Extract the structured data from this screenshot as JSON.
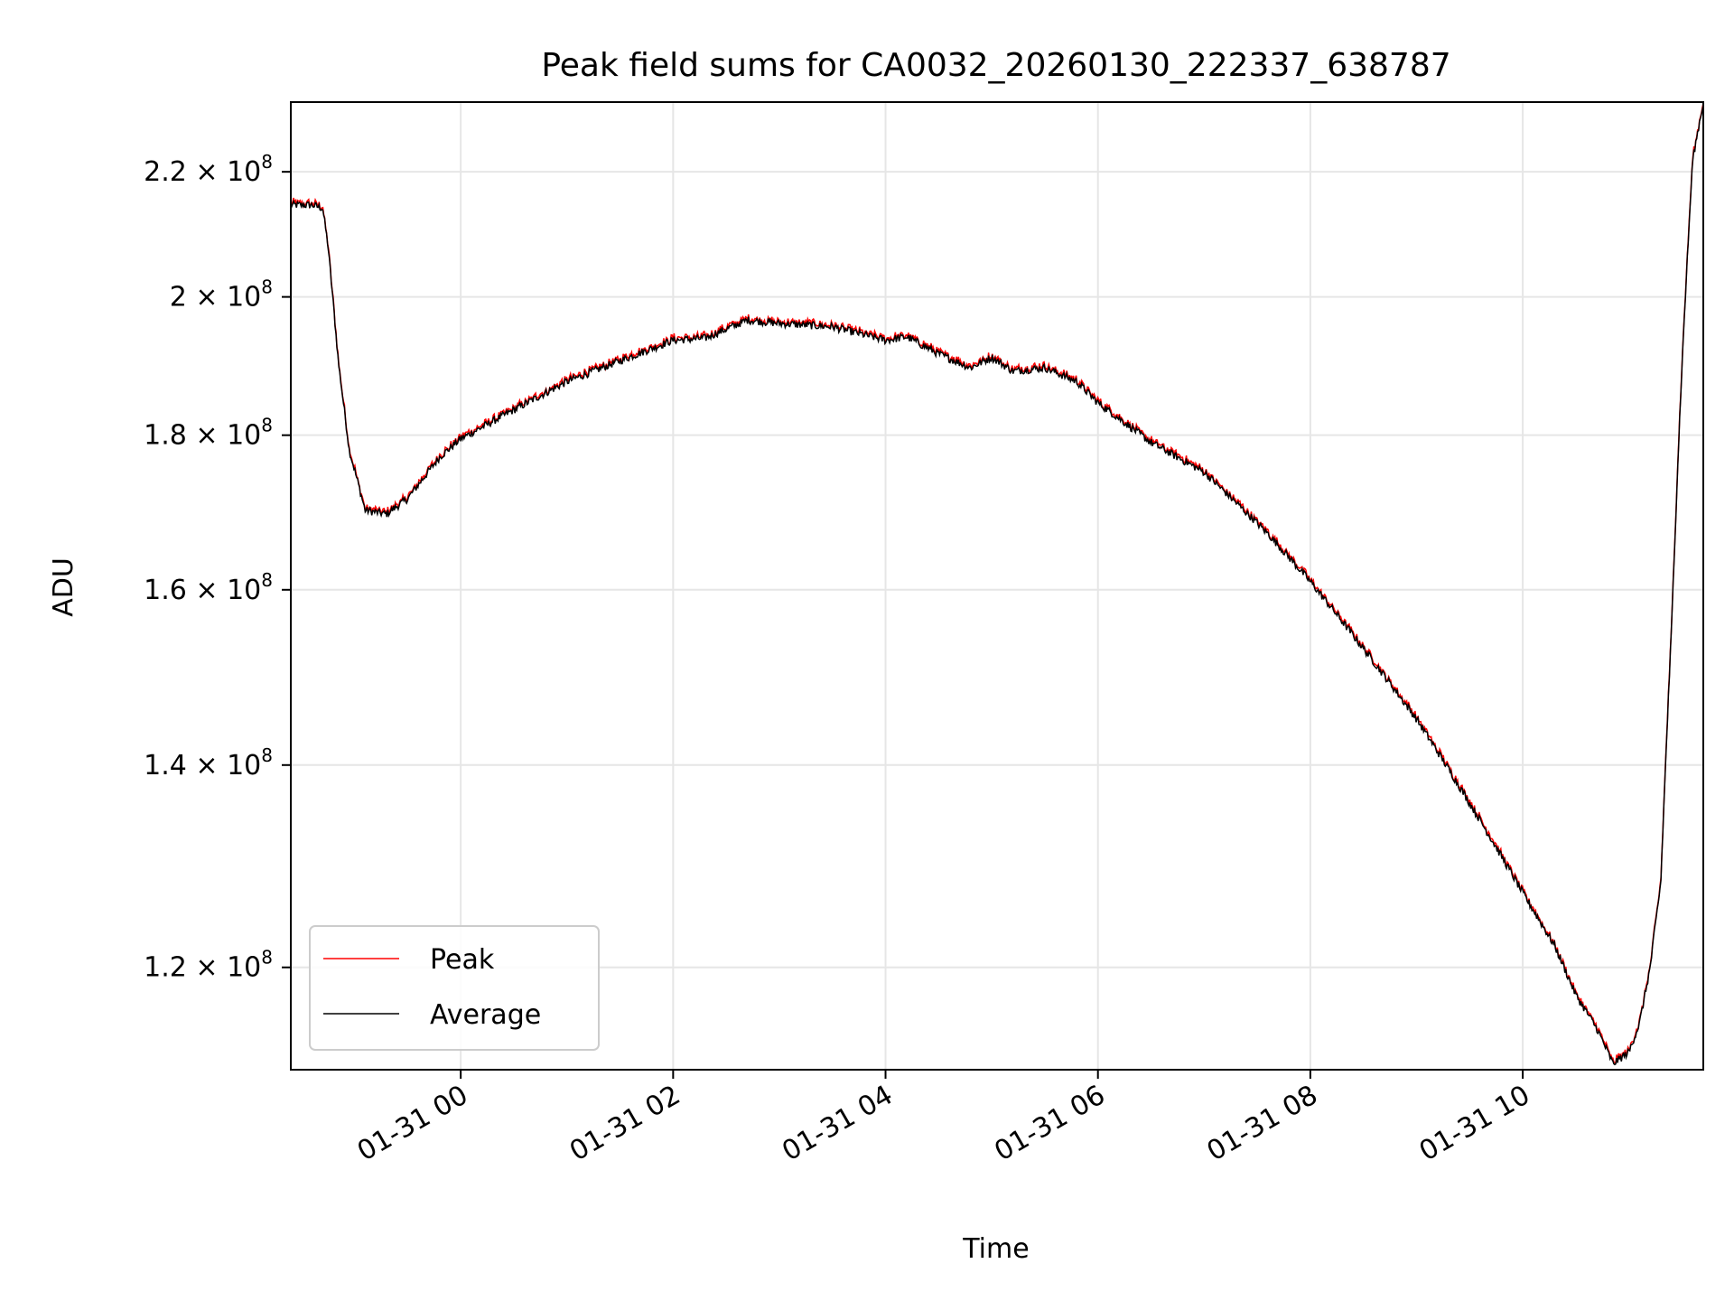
{
  "chart_data": {
    "type": "line",
    "title": "Peak field sums for CA0032_20260130_222337_638787",
    "xlabel": "Time",
    "ylabel": "ADU",
    "y_scale": "log",
    "xlim_hours": [
      -1.6,
      11.7
    ],
    "ylim": [
      111000000,
      232000000
    ],
    "x_ticks": [
      {
        "hour": 0,
        "label": "01-31 00"
      },
      {
        "hour": 2,
        "label": "01-31 02"
      },
      {
        "hour": 4,
        "label": "01-31 04"
      },
      {
        "hour": 6,
        "label": "01-31 06"
      },
      {
        "hour": 8,
        "label": "01-31 08"
      },
      {
        "hour": 10,
        "label": "01-31 10"
      }
    ],
    "y_ticks": [
      {
        "value": 120000000,
        "mantissa": "1.2",
        "exponent": "8"
      },
      {
        "value": 140000000,
        "mantissa": "1.4",
        "exponent": "8"
      },
      {
        "value": 160000000,
        "mantissa": "1.6",
        "exponent": "8"
      },
      {
        "value": 180000000,
        "mantissa": "1.8",
        "exponent": "8"
      },
      {
        "value": 200000000,
        "mantissa": "2",
        "exponent": "8"
      },
      {
        "value": 220000000,
        "mantissa": "2.2",
        "exponent": "8"
      }
    ],
    "grid": true,
    "legend_position": "lower-left",
    "series": [
      {
        "name": "Peak",
        "color": "#ff0000"
      },
      {
        "name": "Average",
        "color": "#000000"
      }
    ],
    "x_hours": [
      -1.6,
      -1.4,
      -1.3,
      -1.25,
      -1.15,
      -1.05,
      -0.9,
      -0.7,
      -0.5,
      -0.2,
      0.0,
      0.5,
      1.0,
      1.5,
      2.0,
      2.3,
      2.7,
      3.0,
      3.5,
      4.0,
      4.2,
      4.5,
      4.8,
      5.0,
      5.2,
      5.5,
      5.8,
      6.0,
      6.5,
      7.0,
      7.3,
      7.6,
      8.0,
      8.5,
      9.0,
      9.5,
      10.0,
      10.3,
      10.5,
      10.7,
      10.85,
      11.0,
      11.1,
      11.2,
      11.3,
      11.4,
      11.5,
      11.6,
      11.7
    ],
    "y_values": [
      214500000,
      214500000,
      214000000,
      208000000,
      190000000,
      178000000,
      170000000,
      169500000,
      171500000,
      177000000,
      179500000,
      183500000,
      187500000,
      190500000,
      193500000,
      193800000,
      196500000,
      196000000,
      195500000,
      193500000,
      194000000,
      191500000,
      189500000,
      191000000,
      189000000,
      189500000,
      187500000,
      184500000,
      179000000,
      175000000,
      171000000,
      167000000,
      161000000,
      153000000,
      145000000,
      136000000,
      127000000,
      122000000,
      117500000,
      114500000,
      111500000,
      112500000,
      115000000,
      120000000,
      128000000,
      155000000,
      190000000,
      222000000,
      232000000
    ]
  }
}
